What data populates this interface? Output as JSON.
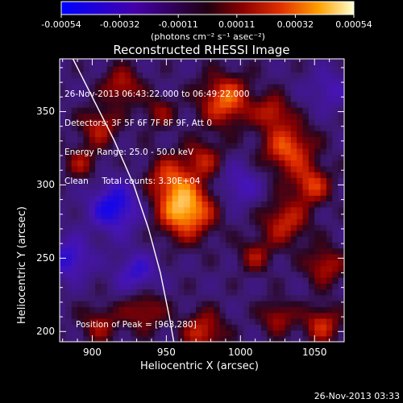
{
  "chart_data": {
    "type": "heatmap",
    "title": "Reconstructed RHESSI Image",
    "xlabel": "Heliocentric X (arcsec)",
    "ylabel": "Heliocentric Y (arcsec)",
    "xlim": [
      878,
      1070
    ],
    "ylim": [
      193,
      386
    ],
    "x_ticks": [
      "900",
      "950",
      "1000",
      "1050"
    ],
    "y_ticks": [
      "200",
      "250",
      "300",
      "350"
    ],
    "colorbar": {
      "ticks": [
        "-0.00054",
        "-0.00032",
        "-0.00011",
        "0.00011",
        "0.00032",
        "0.00054"
      ],
      "range": [
        -0.00054,
        0.00054
      ],
      "unit_text": "(photons cm⁻² s⁻¹ asec⁻²)"
    },
    "info": [
      "26-Nov-2013 06:43:22.000 to 06:49:22.000",
      "Detectors: 3F 5F 6F 7F 8F 9F, Att 0",
      "Energy Range: 25.0 - 50.0 keV",
      "Clean     Total counts: 3.30E+04"
    ],
    "peak_text": "Position of Peak = [963,280]",
    "peak": [
      963,
      280
    ],
    "blobs": [
      {
        "x": 963,
        "y": 283,
        "amp": 1.0,
        "s": 13
      },
      {
        "x": 952,
        "y": 305,
        "amp": 0.55,
        "s": 11
      },
      {
        "x": 975,
        "y": 318,
        "amp": 0.45,
        "s": 9
      },
      {
        "x": 990,
        "y": 358,
        "amp": 0.75,
        "s": 12
      },
      {
        "x": 1032,
        "y": 325,
        "amp": 0.7,
        "s": 12
      },
      {
        "x": 1022,
        "y": 350,
        "amp": 0.5,
        "s": 8
      },
      {
        "x": 1048,
        "y": 300,
        "amp": 0.6,
        "s": 9
      },
      {
        "x": 1030,
        "y": 275,
        "amp": 0.55,
        "s": 11
      },
      {
        "x": 1010,
        "y": 252,
        "amp": 0.4,
        "s": 8
      },
      {
        "x": 1057,
        "y": 245,
        "amp": 0.5,
        "s": 9
      },
      {
        "x": 1055,
        "y": 205,
        "amp": 0.55,
        "s": 9
      },
      {
        "x": 1025,
        "y": 210,
        "amp": 0.45,
        "s": 8
      },
      {
        "x": 975,
        "y": 200,
        "amp": 0.55,
        "s": 10
      },
      {
        "x": 935,
        "y": 215,
        "amp": 0.45,
        "s": 10
      },
      {
        "x": 905,
        "y": 205,
        "amp": 0.4,
        "s": 9
      },
      {
        "x": 905,
        "y": 340,
        "amp": 0.5,
        "s": 9
      },
      {
        "x": 920,
        "y": 368,
        "amp": 0.5,
        "s": 9
      },
      {
        "x": 893,
        "y": 315,
        "amp": 0.4,
        "s": 8
      },
      {
        "x": 945,
        "y": 350,
        "amp": 0.35,
        "s": 8
      },
      {
        "x": 915,
        "y": 285,
        "amp": -0.7,
        "s": 12
      },
      {
        "x": 885,
        "y": 250,
        "amp": -0.55,
        "s": 10
      },
      {
        "x": 1000,
        "y": 300,
        "amp": -0.4,
        "s": 10
      },
      {
        "x": 930,
        "y": 240,
        "amp": -0.5,
        "s": 10
      },
      {
        "x": 1060,
        "y": 365,
        "amp": -0.35,
        "s": 10
      }
    ],
    "limb": [
      [
        887,
        386
      ],
      [
        900,
        360
      ],
      [
        915,
        330
      ],
      [
        928,
        300
      ],
      [
        938,
        270
      ],
      [
        946,
        240
      ],
      [
        952,
        210
      ],
      [
        955,
        193
      ]
    ]
  }
}
